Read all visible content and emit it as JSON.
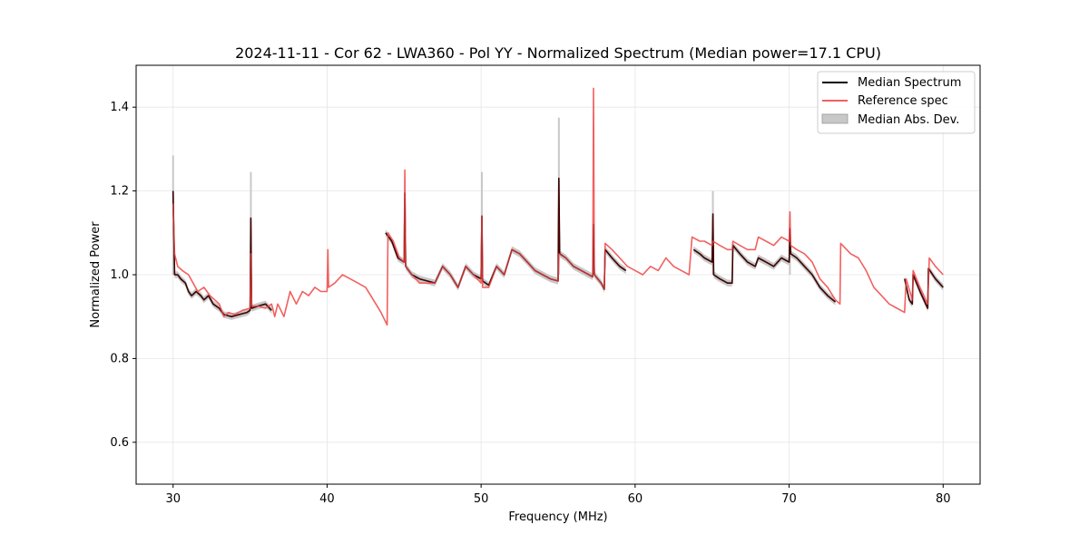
{
  "chart_data": {
    "type": "line",
    "title": "2024-11-11 - Cor 62 - LWA360 - Pol YY - Normalized Spectrum (Median power=17.1 CPU)",
    "xlabel": "Frequency (MHz)",
    "ylabel": "Normalized Power",
    "xlim": [
      27.6,
      82.4
    ],
    "ylim": [
      0.5,
      1.5
    ],
    "xticks": [
      30,
      40,
      50,
      60,
      70,
      80
    ],
    "yticks": [
      0.6,
      0.8,
      1.0,
      1.2,
      1.4
    ],
    "xtick_labels": [
      "30",
      "40",
      "50",
      "60",
      "70",
      "80"
    ],
    "ytick_labels": [
      "0.6",
      "0.8",
      "1.0",
      "1.2",
      "1.4"
    ],
    "grid": true,
    "legend_position": "top-right",
    "legend": [
      "Median Spectrum",
      "Reference spec",
      "Median Abs. Dev."
    ],
    "series": [
      {
        "name": "Median Spectrum",
        "color": "#000000",
        "segments": [
          [
            [
              30.0,
              1.2
            ],
            [
              30.1,
              1.0
            ],
            [
              30.3,
              1.0
            ],
            [
              30.5,
              0.99
            ],
            [
              30.8,
              0.98
            ],
            [
              31.0,
              0.96
            ],
            [
              31.2,
              0.95
            ],
            [
              31.5,
              0.96
            ],
            [
              31.8,
              0.95
            ],
            [
              32.0,
              0.94
            ],
            [
              32.3,
              0.95
            ],
            [
              32.6,
              0.93
            ],
            [
              33.0,
              0.92
            ],
            [
              33.3,
              0.905
            ],
            [
              33.8,
              0.9
            ],
            [
              34.3,
              0.905
            ],
            [
              34.8,
              0.91
            ],
            [
              35.0,
              0.915
            ],
            [
              35.05,
              1.135
            ],
            [
              35.1,
              0.92
            ],
            [
              35.5,
              0.925
            ],
            [
              36.0,
              0.93
            ],
            [
              36.4,
              0.915
            ]
          ],
          [
            [
              43.8,
              1.1
            ],
            [
              44.2,
              1.08
            ],
            [
              44.6,
              1.04
            ],
            [
              45.0,
              1.03
            ],
            [
              45.05,
              1.195
            ],
            [
              45.1,
              1.02
            ],
            [
              45.5,
              1.0
            ],
            [
              46.0,
              0.99
            ],
            [
              46.5,
              0.985
            ],
            [
              47.0,
              0.98
            ],
            [
              47.5,
              1.02
            ],
            [
              48.0,
              1.0
            ],
            [
              48.5,
              0.97
            ],
            [
              49.0,
              1.02
            ],
            [
              49.5,
              1.0
            ],
            [
              50.0,
              0.99
            ],
            [
              50.05,
              1.14
            ],
            [
              50.1,
              0.985
            ],
            [
              50.5,
              0.975
            ],
            [
              51.0,
              1.02
            ],
            [
              51.5,
              1.0
            ],
            [
              52.0,
              1.06
            ],
            [
              52.5,
              1.05
            ],
            [
              53.0,
              1.03
            ],
            [
              53.5,
              1.01
            ],
            [
              54.0,
              1.0
            ],
            [
              54.5,
              0.99
            ],
            [
              55.0,
              0.985
            ],
            [
              55.05,
              1.23
            ],
            [
              55.1,
              1.05
            ],
            [
              55.5,
              1.04
            ],
            [
              56.0,
              1.02
            ],
            [
              56.5,
              1.01
            ],
            [
              57.0,
              1.0
            ],
            [
              57.25,
              0.995
            ],
            [
              57.3,
              1.12
            ],
            [
              57.35,
              1.0
            ],
            [
              57.8,
              0.98
            ],
            [
              58.0,
              0.965
            ],
            [
              58.05,
              1.06
            ],
            [
              58.5,
              1.04
            ],
            [
              59.0,
              1.02
            ],
            [
              59.4,
              1.01
            ]
          ],
          [
            [
              63.8,
              1.06
            ],
            [
              64.2,
              1.05
            ],
            [
              64.5,
              1.04
            ],
            [
              65.0,
              1.03
            ],
            [
              65.05,
              1.145
            ],
            [
              65.1,
              1.0
            ],
            [
              65.5,
              0.99
            ],
            [
              66.0,
              0.98
            ],
            [
              66.3,
              0.98
            ],
            [
              66.35,
              1.07
            ],
            [
              66.8,
              1.05
            ],
            [
              67.3,
              1.03
            ],
            [
              67.8,
              1.02
            ],
            [
              68.0,
              1.04
            ],
            [
              68.5,
              1.03
            ],
            [
              69.0,
              1.02
            ],
            [
              69.5,
              1.04
            ],
            [
              70.0,
              1.03
            ],
            [
              70.05,
              1.11
            ],
            [
              70.1,
              1.05
            ],
            [
              70.5,
              1.04
            ],
            [
              71.0,
              1.02
            ],
            [
              71.5,
              1.0
            ],
            [
              72.0,
              0.97
            ],
            [
              72.5,
              0.95
            ],
            [
              73.0,
              0.935
            ]
          ],
          [
            [
              77.5,
              0.99
            ],
            [
              77.8,
              0.94
            ],
            [
              78.0,
              0.93
            ],
            [
              78.05,
              1.0
            ],
            [
              78.5,
              0.96
            ],
            [
              79.0,
              0.92
            ],
            [
              79.05,
              1.015
            ],
            [
              79.5,
              0.99
            ],
            [
              80.0,
              0.97
            ]
          ]
        ]
      },
      {
        "name": "Reference spec",
        "color": "#f26060",
        "segments": [
          [
            [
              30.0,
              1.17
            ],
            [
              30.1,
              1.05
            ],
            [
              30.3,
              1.02
            ],
            [
              30.6,
              1.01
            ],
            [
              31.0,
              1.0
            ],
            [
              31.3,
              0.98
            ],
            [
              31.6,
              0.96
            ],
            [
              32.0,
              0.97
            ],
            [
              32.4,
              0.95
            ],
            [
              32.7,
              0.94
            ],
            [
              33.0,
              0.93
            ],
            [
              33.3,
              0.9
            ],
            [
              33.6,
              0.91
            ],
            [
              34.0,
              0.905
            ],
            [
              34.5,
              0.915
            ],
            [
              35.0,
              0.92
            ],
            [
              35.05,
              1.05
            ],
            [
              35.1,
              0.925
            ],
            [
              35.5,
              0.925
            ],
            [
              36.0,
              0.92
            ],
            [
              36.4,
              0.93
            ],
            [
              36.6,
              0.9
            ],
            [
              36.8,
              0.93
            ],
            [
              37.2,
              0.9
            ],
            [
              37.6,
              0.96
            ],
            [
              38.0,
              0.93
            ],
            [
              38.4,
              0.96
            ],
            [
              38.8,
              0.95
            ],
            [
              39.2,
              0.97
            ],
            [
              39.6,
              0.96
            ],
            [
              40.0,
              0.96
            ],
            [
              40.05,
              1.06
            ],
            [
              40.1,
              0.97
            ],
            [
              40.5,
              0.98
            ],
            [
              41.0,
              1.0
            ],
            [
              41.5,
              0.99
            ],
            [
              42.0,
              0.98
            ],
            [
              42.5,
              0.97
            ],
            [
              43.0,
              0.94
            ],
            [
              43.5,
              0.91
            ],
            [
              43.9,
              0.88
            ],
            [
              43.95,
              1.1
            ],
            [
              44.3,
              1.08
            ],
            [
              44.7,
              1.04
            ],
            [
              45.0,
              1.03
            ],
            [
              45.05,
              1.25
            ],
            [
              45.1,
              1.02
            ],
            [
              45.5,
              1.0
            ],
            [
              46.0,
              0.98
            ],
            [
              46.5,
              0.98
            ],
            [
              47.0,
              0.98
            ],
            [
              47.5,
              1.02
            ],
            [
              48.0,
              1.0
            ],
            [
              48.5,
              0.97
            ],
            [
              49.0,
              1.02
            ],
            [
              49.5,
              1.0
            ],
            [
              50.0,
              0.98
            ],
            [
              50.05,
              1.14
            ],
            [
              50.1,
              0.97
            ],
            [
              50.5,
              0.97
            ],
            [
              51.0,
              1.02
            ],
            [
              51.5,
              1.0
            ],
            [
              52.0,
              1.06
            ],
            [
              52.5,
              1.05
            ],
            [
              53.0,
              1.03
            ],
            [
              53.5,
              1.01
            ],
            [
              54.0,
              1.0
            ],
            [
              54.5,
              0.99
            ],
            [
              55.0,
              0.985
            ],
            [
              55.05,
              1.05
            ],
            [
              55.5,
              1.04
            ],
            [
              56.0,
              1.02
            ],
            [
              56.5,
              1.01
            ],
            [
              57.0,
              1.0
            ],
            [
              57.25,
              0.995
            ],
            [
              57.3,
              1.445
            ],
            [
              57.35,
              1.0
            ],
            [
              57.8,
              0.98
            ],
            [
              58.0,
              0.965
            ],
            [
              58.05,
              1.075
            ],
            [
              58.5,
              1.06
            ],
            [
              59.0,
              1.04
            ],
            [
              59.5,
              1.02
            ],
            [
              60.0,
              1.01
            ],
            [
              60.5,
              1.0
            ],
            [
              61.0,
              1.02
            ],
            [
              61.5,
              1.01
            ],
            [
              62.0,
              1.04
            ],
            [
              62.5,
              1.02
            ],
            [
              63.0,
              1.01
            ],
            [
              63.5,
              1.0
            ],
            [
              63.7,
              1.09
            ],
            [
              64.2,
              1.08
            ],
            [
              64.5,
              1.08
            ],
            [
              65.0,
              1.07
            ],
            [
              65.05,
              1.08
            ],
            [
              65.5,
              1.07
            ],
            [
              66.0,
              1.06
            ],
            [
              66.3,
              1.06
            ],
            [
              66.35,
              1.08
            ],
            [
              66.8,
              1.07
            ],
            [
              67.3,
              1.06
            ],
            [
              67.8,
              1.06
            ],
            [
              68.0,
              1.09
            ],
            [
              68.5,
              1.08
            ],
            [
              69.0,
              1.07
            ],
            [
              69.5,
              1.09
            ],
            [
              70.0,
              1.08
            ],
            [
              70.05,
              1.15
            ],
            [
              70.1,
              1.07
            ],
            [
              70.5,
              1.06
            ],
            [
              71.0,
              1.05
            ],
            [
              71.5,
              1.03
            ],
            [
              72.0,
              0.99
            ],
            [
              72.5,
              0.97
            ],
            [
              73.0,
              0.94
            ],
            [
              73.3,
              0.93
            ],
            [
              73.35,
              1.075
            ],
            [
              74.0,
              1.05
            ],
            [
              74.5,
              1.04
            ],
            [
              75.0,
              1.01
            ],
            [
              75.5,
              0.97
            ],
            [
              76.0,
              0.95
            ],
            [
              76.5,
              0.93
            ],
            [
              77.0,
              0.92
            ],
            [
              77.5,
              0.91
            ],
            [
              77.6,
              0.99
            ],
            [
              78.0,
              0.94
            ],
            [
              78.05,
              1.01
            ],
            [
              78.5,
              0.97
            ],
            [
              79.0,
              0.93
            ],
            [
              79.1,
              1.04
            ],
            [
              79.5,
              1.02
            ],
            [
              80.0,
              1.0
            ]
          ]
        ]
      },
      {
        "name": "Median Abs. Dev.",
        "color": "#c8c8c8",
        "spikes": [
          [
            30.0,
            1.285
          ],
          [
            35.05,
            1.245
          ],
          [
            50.05,
            1.245
          ],
          [
            55.05,
            1.375
          ],
          [
            57.3,
            1.13
          ],
          [
            65.05,
            1.2
          ],
          [
            70.05,
            1.15
          ]
        ],
        "band_halfwidth": 0.008
      }
    ],
    "overlay_color": "#8b0000"
  }
}
